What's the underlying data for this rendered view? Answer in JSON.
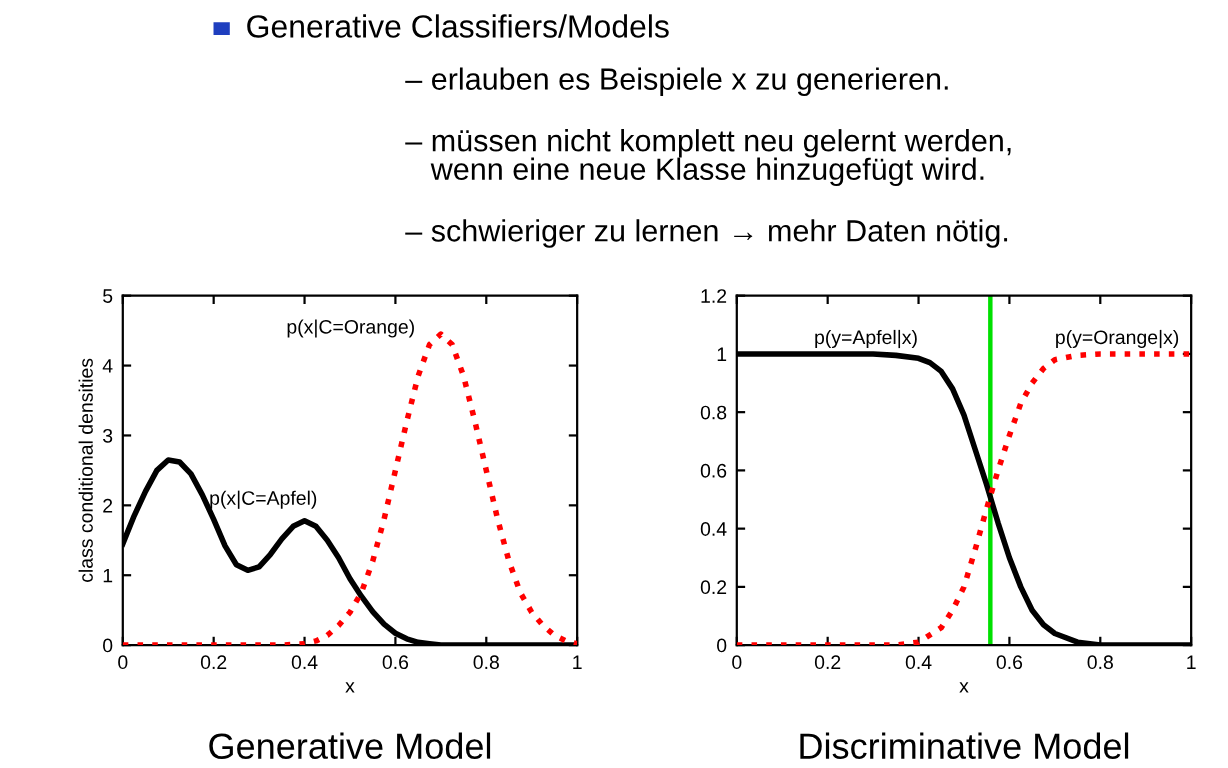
{
  "chart_data": [
    {
      "type": "other",
      "title": "Generative Classifiers/Models",
      "annotations": [
        "– erlauben es Beispiele x zu generieren.",
        "– müssen nicht komplett neu gelernt werden,\n   wenn eine neue Klasse hinzugefügt wird.",
        "– schwieriger zu lernen → mehr Daten nötig."
      ]
    },
    {
      "type": "line",
      "title": "Generative Model",
      "xlabel": "x",
      "ylabel": "class conditional densities",
      "xlim": [
        0,
        1
      ],
      "ylim": [
        0,
        5
      ],
      "xticks": [
        0,
        0.2,
        0.4,
        0.6,
        0.8,
        1
      ],
      "yticks": [
        0,
        1,
        2,
        3,
        4,
        5
      ],
      "grid": false,
      "series": [
        {
          "color": "#000000",
          "line_style": "solid",
          "x": [
            0,
            0.025,
            0.05,
            0.075,
            0.1,
            0.125,
            0.15,
            0.175,
            0.2,
            0.225,
            0.25,
            0.275,
            0.3,
            0.325,
            0.35,
            0.375,
            0.4,
            0.425,
            0.45,
            0.475,
            0.5,
            0.525,
            0.55,
            0.575,
            0.6,
            0.625,
            0.65,
            0.675,
            0.7,
            0.75,
            0.8,
            1
          ],
          "values": [
            1.45,
            1.85,
            2.2,
            2.5,
            2.65,
            2.62,
            2.45,
            2.15,
            1.8,
            1.42,
            1.15,
            1.07,
            1.12,
            1.3,
            1.52,
            1.7,
            1.78,
            1.7,
            1.5,
            1.25,
            0.95,
            0.7,
            0.48,
            0.3,
            0.17,
            0.09,
            0.04,
            0.02,
            0,
            0,
            0,
            0
          ]
        },
        {
          "color": "#ff0000",
          "line_style": "dotted",
          "x": [
            0,
            0.35,
            0.4,
            0.425,
            0.45,
            0.475,
            0.5,
            0.525,
            0.55,
            0.575,
            0.6,
            0.625,
            0.65,
            0.675,
            0.7,
            0.725,
            0.75,
            0.775,
            0.8,
            0.825,
            0.85,
            0.875,
            0.9,
            0.925,
            0.95,
            0.975,
            1
          ],
          "values": [
            0,
            0,
            0.02,
            0.06,
            0.14,
            0.28,
            0.47,
            0.75,
            1.2,
            1.8,
            2.5,
            3.2,
            3.85,
            4.3,
            4.45,
            4.3,
            3.85,
            3.2,
            2.5,
            1.8,
            1.2,
            0.75,
            0.47,
            0.28,
            0.14,
            0.06,
            0.02
          ]
        }
      ],
      "annotations": [
        {
          "text": "p(x|C=Apfel)",
          "x": 0.19,
          "y": 1.95
        },
        "p(x|C=Orange)"
      ]
    },
    {
      "type": "line",
      "title": "Discriminative Model",
      "xlabel": "x",
      "xlim": [
        0,
        1
      ],
      "ylim": [
        0,
        1.2
      ],
      "xticks": [
        0,
        0.2,
        0.4,
        0.6,
        0.8,
        1
      ],
      "yticks": [
        0,
        0.2,
        0.4,
        0.6,
        0.8,
        1,
        1.2
      ],
      "grid": false,
      "series": [
        {
          "color": "#000000",
          "line_style": "solid",
          "x": [
            0,
            0.3,
            0.35,
            0.4,
            0.425,
            0.45,
            0.475,
            0.5,
            0.525,
            0.55,
            0.575,
            0.6,
            0.625,
            0.65,
            0.675,
            0.7,
            0.75,
            0.8,
            1
          ],
          "values": [
            1,
            1,
            0.995,
            0.985,
            0.97,
            0.94,
            0.88,
            0.79,
            0.67,
            0.55,
            0.42,
            0.3,
            0.2,
            0.12,
            0.07,
            0.04,
            0.01,
            0,
            0
          ]
        },
        {
          "color": "#ff0000",
          "line_style": "dotted",
          "x": [
            0,
            0.35,
            0.4,
            0.45,
            0.475,
            0.5,
            0.525,
            0.55,
            0.575,
            0.6,
            0.625,
            0.65,
            0.675,
            0.7,
            0.75,
            0.8,
            1
          ],
          "values": [
            0,
            0,
            0.01,
            0.06,
            0.12,
            0.2,
            0.33,
            0.47,
            0.6,
            0.72,
            0.83,
            0.9,
            0.95,
            0.98,
            0.995,
            1,
            1
          ]
        }
      ],
      "ref_lines": [
        {
          "axis": "x",
          "value": 0.558,
          "color": "#00e000"
        }
      ],
      "annotations": [
        {
          "text": "p(y=Apfel|x)",
          "x": 0.17,
          "y": 1.02
        },
        {
          "text": "p(y=Orange|x)",
          "x": 0.7,
          "y": 1.02
        }
      ]
    }
  ]
}
